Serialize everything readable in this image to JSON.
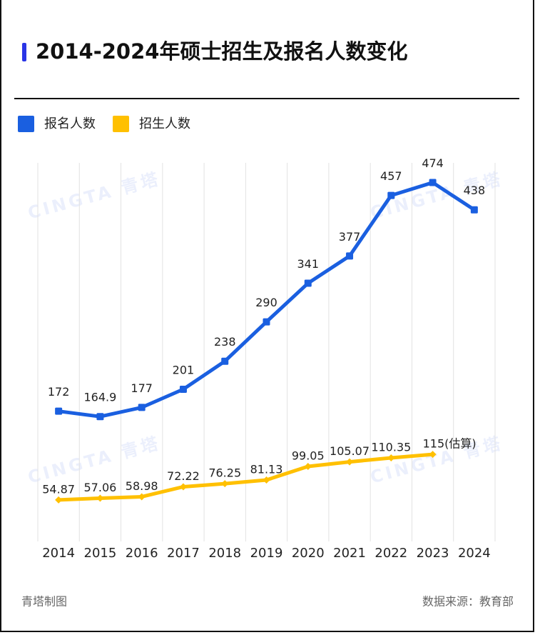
{
  "chart_data": {
    "type": "line",
    "title": "2014-2024年硕士招生及报名人数变化",
    "categories": [
      "2014",
      "2015",
      "2016",
      "2017",
      "2018",
      "2019",
      "2020",
      "2021",
      "2022",
      "2023",
      "2024"
    ],
    "series": [
      {
        "name": "报名人数",
        "color": "#1a5fe0",
        "values": [
          172,
          164.9,
          177,
          201,
          238,
          290,
          341,
          377,
          457,
          474,
          438
        ]
      },
      {
        "name": "招生人数",
        "color": "#ffc000",
        "values": [
          54.87,
          57.06,
          58.98,
          72.22,
          76.25,
          81.13,
          99.05,
          105.07,
          110.35,
          115,
          null
        ],
        "value_labels": [
          "54.87",
          "57.06",
          "58.98",
          "72.22",
          "76.25",
          "81.13",
          "99.05",
          "105.07",
          "110.35",
          "115(估算)",
          null
        ]
      }
    ],
    "ylim": [
      0,
      500
    ],
    "grid": true,
    "legend": "top-left",
    "credit": "青塔制图",
    "source": "数据来源：教育部",
    "watermark": "CINGTA 青塔"
  }
}
